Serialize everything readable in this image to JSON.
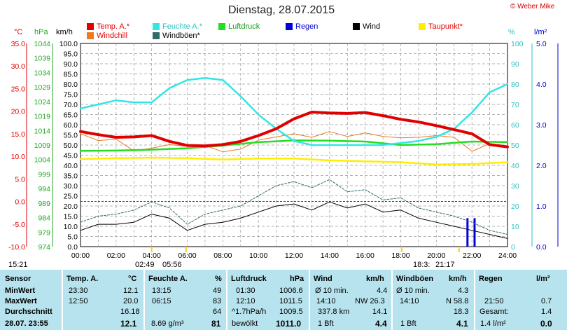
{
  "title": "Dienstag, 28.07.2015",
  "copyright": "© Weber Mike",
  "legend": [
    {
      "label": "Temp. A.*",
      "color": "#e00000"
    },
    {
      "label": "Feuchte A.*",
      "color": "#33e6e6"
    },
    {
      "label": "Luftdruck",
      "color": "#22dd22"
    },
    {
      "label": "Regen",
      "color": "#0000dd"
    },
    {
      "label": "Wind",
      "color": "#000000"
    },
    {
      "label": "Taupunkt*",
      "color": "#ffee00"
    },
    {
      "label": "Windchill",
      "color": "#f07820"
    },
    {
      "label": "Windböen*",
      "color": "#336a6a"
    }
  ],
  "axis_units": {
    "temp": "°C",
    "pressure": "hPa",
    "wind": "km/h",
    "humidity": "%",
    "rain": "l/m²"
  },
  "sun_times": {
    "sunrise_label": "05:56",
    "sunset_label": "21:17",
    "moon_label_left": "02:49",
    "moon_label_right": "18:3:",
    "left_time": "15:21"
  },
  "chart_data": {
    "type": "line",
    "x_ticks": [
      "00:00",
      "02:00",
      "04:00",
      "06:00",
      "08:00",
      "10:00",
      "12:00",
      "14:00",
      "16:00",
      "18:00",
      "20:00",
      "22:00",
      "24:00"
    ],
    "axes": {
      "temp": {
        "ticks": [
          "35.0",
          "30.0",
          "25.0",
          "20.0",
          "15.0",
          "10.0",
          "5.0",
          "0.0",
          "-5.0",
          "-10.0"
        ],
        "ylim": [
          -10,
          35
        ]
      },
      "pressure": {
        "ticks": [
          "1044",
          "1039",
          "1034",
          "1029",
          "1024",
          "1019",
          "1014",
          "1009",
          "1004",
          "999",
          "994",
          "989",
          "984",
          "979",
          "974"
        ],
        "ylim": [
          974,
          1044
        ]
      },
      "wind": {
        "ticks": [
          "100.0",
          "95.0",
          "90.0",
          "85.0",
          "80.0",
          "75.0",
          "70.0",
          "65.0",
          "60.0",
          "55.0",
          "50.0",
          "45.0",
          "40.0",
          "35.0",
          "30.0",
          "25.0",
          "20.0",
          "15.0",
          "10.0",
          "5.0",
          "0.0"
        ],
        "ylim": [
          0,
          100
        ]
      },
      "humidity": {
        "ticks": [
          "100",
          "90",
          "80",
          "70",
          "60",
          "50",
          "40",
          "30",
          "20",
          "10",
          "0"
        ],
        "ylim": [
          0,
          100
        ]
      },
      "rain": {
        "ticks": [
          "5.0",
          "4.0",
          "3.0",
          "2.0",
          "1.0",
          "0.0"
        ],
        "ylim": [
          0,
          5
        ]
      }
    },
    "series": [
      {
        "name": "Temp. A.*",
        "axis": "temp",
        "color": "#e00000",
        "width": 4,
        "x": [
          0,
          1,
          2,
          3,
          4,
          5,
          6,
          7,
          8,
          9,
          10,
          11,
          12,
          13,
          14,
          15,
          16,
          17,
          18,
          19,
          20,
          21,
          22,
          23,
          24
        ],
        "values": [
          15.5,
          14.8,
          14.2,
          14.3,
          14.6,
          13.3,
          12.4,
          12.3,
          12.6,
          13.3,
          14.6,
          16.1,
          18.3,
          19.8,
          19.6,
          19.5,
          19.7,
          19.0,
          18.2,
          17.6,
          16.8,
          15.9,
          15.0,
          12.6,
          12.1
        ]
      },
      {
        "name": "Feuchte A.*",
        "axis": "humidity",
        "color": "#33e6e6",
        "width": 2.5,
        "x": [
          0,
          1,
          2,
          3,
          4,
          5,
          6,
          7,
          8,
          9,
          10,
          11,
          12,
          13,
          14,
          15,
          16,
          17,
          18,
          19,
          20,
          21,
          22,
          23,
          24
        ],
        "values": [
          68,
          70,
          72,
          71,
          71,
          78,
          82,
          83,
          82,
          74,
          65,
          58,
          52,
          50,
          50,
          50,
          50,
          50,
          51,
          52,
          54,
          58,
          66,
          76,
          80
        ]
      },
      {
        "name": "Luftdruck",
        "axis": "pressure",
        "color": "#22dd22",
        "width": 2.5,
        "x": [
          0,
          2,
          4,
          6,
          8,
          10,
          12,
          14,
          16,
          18,
          20,
          22,
          24
        ],
        "values": [
          1007.0,
          1007.1,
          1007.4,
          1007.9,
          1008.8,
          1010.0,
          1010.6,
          1010.5,
          1010.2,
          1009.0,
          1009.3,
          1010.2,
          1010.0
        ]
      },
      {
        "name": "Taupunkt*",
        "axis": "temp",
        "color": "#ffee00",
        "width": 2.5,
        "x": [
          0,
          2,
          4,
          6,
          8,
          10,
          12,
          14,
          16,
          18,
          20,
          22,
          24
        ],
        "values": [
          9.4,
          9.6,
          9.7,
          9.6,
          9.3,
          9.5,
          9.5,
          9.1,
          8.9,
          8.7,
          8.2,
          8.3,
          8.7
        ]
      },
      {
        "name": "Windchill",
        "axis": "temp",
        "color": "#f07820",
        "width": 1,
        "x": [
          0,
          1,
          2,
          3,
          4,
          5,
          6,
          7,
          8,
          9,
          10,
          11,
          12,
          13,
          14,
          15,
          16,
          17,
          18,
          19,
          20,
          21,
          22,
          23,
          24
        ],
        "values": [
          15.0,
          13.5,
          13.8,
          11.2,
          11.8,
          12.6,
          12.2,
          12.4,
          11.0,
          11.6,
          13.6,
          14.3,
          15.0,
          14.2,
          15.5,
          14.4,
          15.2,
          14.4,
          14.1,
          14.2,
          14.6,
          14.2,
          11.1,
          12.8,
          12.1
        ]
      },
      {
        "name": "Wind",
        "axis": "wind",
        "color": "#000000",
        "width": 1,
        "x": [
          0,
          1,
          2,
          3,
          4,
          5,
          6,
          7,
          8,
          9,
          10,
          11,
          12,
          13,
          14,
          15,
          16,
          17,
          18,
          19,
          20,
          21,
          22,
          23,
          24
        ],
        "values": [
          8,
          11,
          11,
          12,
          16,
          14,
          8,
          11,
          12,
          14,
          17,
          20,
          21,
          18,
          22,
          19,
          21,
          17,
          18,
          14,
          12,
          10,
          8,
          6,
          4
        ]
      },
      {
        "name": "Windböen*",
        "axis": "wind",
        "color": "#336a6a",
        "width": 1,
        "dash": "3,2",
        "x": [
          0,
          1,
          2,
          3,
          4,
          5,
          6,
          7,
          8,
          9,
          10,
          11,
          12,
          13,
          14,
          15,
          16,
          17,
          18,
          19,
          20,
          21,
          22,
          23,
          24
        ],
        "values": [
          12,
          15,
          16,
          18,
          22,
          19,
          11,
          16,
          18,
          20,
          25,
          30,
          32,
          29,
          33,
          27,
          28,
          23,
          24,
          19,
          17,
          15,
          12,
          8,
          6
        ]
      }
    ],
    "rain_bars": {
      "x": [
        21.75,
        22.15
      ],
      "values": [
        0.7,
        0.7
      ]
    },
    "reference_line": {
      "axis": "temp",
      "value": 0,
      "color": "#2a3acc"
    }
  },
  "table": {
    "headers": [
      "Sensor",
      "Temp. A.",
      "°C",
      "Feuchte A.",
      "%",
      "Luftdruck",
      "hPa",
      "Wind",
      "km/h",
      "Windböen",
      "km/h",
      "Regen",
      "l/m²"
    ],
    "min": {
      "label": "MinWert",
      "t_time": "23:30",
      "t_val": "12.1",
      "h_time": "13:15",
      "h_val": "49",
      "p_time": "01:30",
      "p_val": "1006.6",
      "w_l": "Ø 10 min.",
      "w_v": "4.4",
      "g_l": "Ø 10 min.",
      "g_v": "4.3",
      "r_l": "",
      "r_v": ""
    },
    "max": {
      "label": "MaxWert",
      "t_time": "12:50",
      "t_val": "20.0",
      "h_time": "06:15",
      "h_val": "83",
      "p_time": "12:10",
      "p_val": "1011.5",
      "w_l": "14:10",
      "w_m": "NW 26.3",
      "w_v": "",
      "g_l": "14:10",
      "g_m": "N 58.8",
      "g_v": "",
      "r_l": "21:50",
      "r_v": "0.7"
    },
    "avg": {
      "label": "Durchschnitt",
      "t_val": "16.18",
      "h_val": "64",
      "p_l": "^1.7hPa/h",
      "p_val": "1009.5",
      "w_l": "337.8 km",
      "w_v": "14.1",
      "g_v": "18.3",
      "r_l": "Gesamt:",
      "r_v": "1.4"
    },
    "now": {
      "label": "28.07.  23:55",
      "t_val": "12.1",
      "h_l": "8.69 g/m³",
      "h_val": "81",
      "p_l": "bewölkt",
      "p_val": "1011.0",
      "w_l": "1 Bft",
      "w_v": "4.4",
      "g_l": "1 Bft",
      "g_v": "4.1",
      "r_l": "1.4 l/m²",
      "r_v": "0.0"
    }
  }
}
